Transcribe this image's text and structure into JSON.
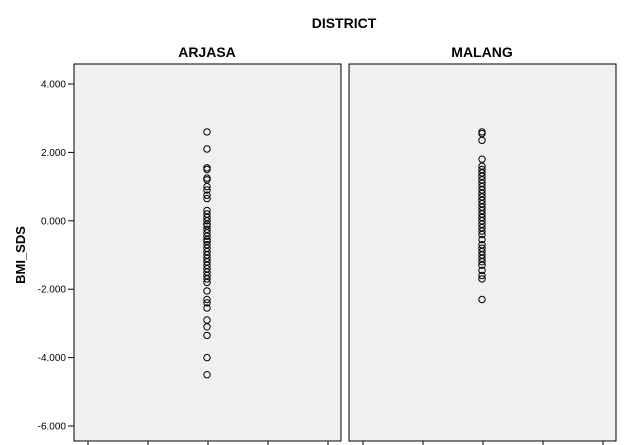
{
  "chart_data": {
    "type": "scatter",
    "title": "DISTRICT",
    "ylabel": "BMI_SDS",
    "xlabel": "",
    "ylim": [
      -6.0,
      4.0
    ],
    "yticks": [
      {
        "value": 4.0,
        "label": "4.000"
      },
      {
        "value": 2.0,
        "label": "2.000"
      },
      {
        "value": 0.0,
        "label": "0.000"
      },
      {
        "value": -2.0,
        "label": "-2.000"
      },
      {
        "value": -4.0,
        "label": "-4.000"
      },
      {
        "value": -6.0,
        "label": "-6.000"
      }
    ],
    "grid": false,
    "background": "#f0f0f0",
    "marker": "open-circle",
    "marker_color": "#000000",
    "panels": [
      {
        "name": "ARJASA",
        "values": [
          2.6,
          2.1,
          1.55,
          1.5,
          1.25,
          1.2,
          1.0,
          0.9,
          0.75,
          0.65,
          0.3,
          0.2,
          0.1,
          0.0,
          -0.1,
          -0.15,
          -0.25,
          -0.35,
          -0.45,
          -0.55,
          -0.6,
          -0.7,
          -0.8,
          -0.9,
          -1.0,
          -1.1,
          -1.2,
          -1.3,
          -1.4,
          -1.5,
          -1.6,
          -1.7,
          -1.8,
          -2.05,
          -2.3,
          -2.4,
          -2.55,
          -2.9,
          -3.1,
          -3.35,
          -4.0,
          -4.5
        ]
      },
      {
        "name": "MALANG",
        "values": [
          2.6,
          2.55,
          2.35,
          1.8,
          1.6,
          1.5,
          1.4,
          1.3,
          1.2,
          1.1,
          1.0,
          0.9,
          0.8,
          0.7,
          0.6,
          0.5,
          0.4,
          0.3,
          0.2,
          0.1,
          0.0,
          -0.1,
          -0.2,
          -0.3,
          -0.4,
          -0.55,
          -0.7,
          -0.8,
          -0.9,
          -1.0,
          -1.1,
          -1.2,
          -1.3,
          -1.45,
          -1.6,
          -1.7,
          -2.3
        ]
      }
    ]
  }
}
